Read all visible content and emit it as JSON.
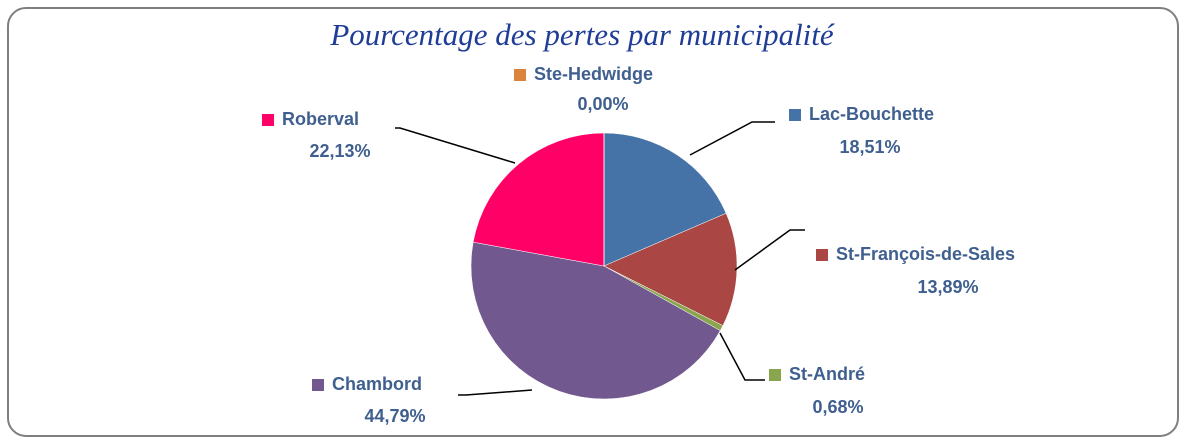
{
  "chart_data": {
    "type": "pie",
    "title": "Pourcentage des pertes par municipalité",
    "categories": [
      "Lac-Bouchette",
      "St-François-de-Sales",
      "St-André",
      "Chambord",
      "Roberval",
      "Ste-Hedwidge"
    ],
    "values": [
      18.51,
      13.89,
      0.68,
      44.79,
      22.13,
      0.0
    ],
    "value_labels": [
      "18,51%",
      "13,89%",
      "0,68%",
      "44,79%",
      "22,13%",
      "0,00%"
    ],
    "colors": [
      "#4572a7",
      "#aa4643",
      "#89a54e",
      "#71588f",
      "#ff0066",
      "#db843d"
    ]
  }
}
